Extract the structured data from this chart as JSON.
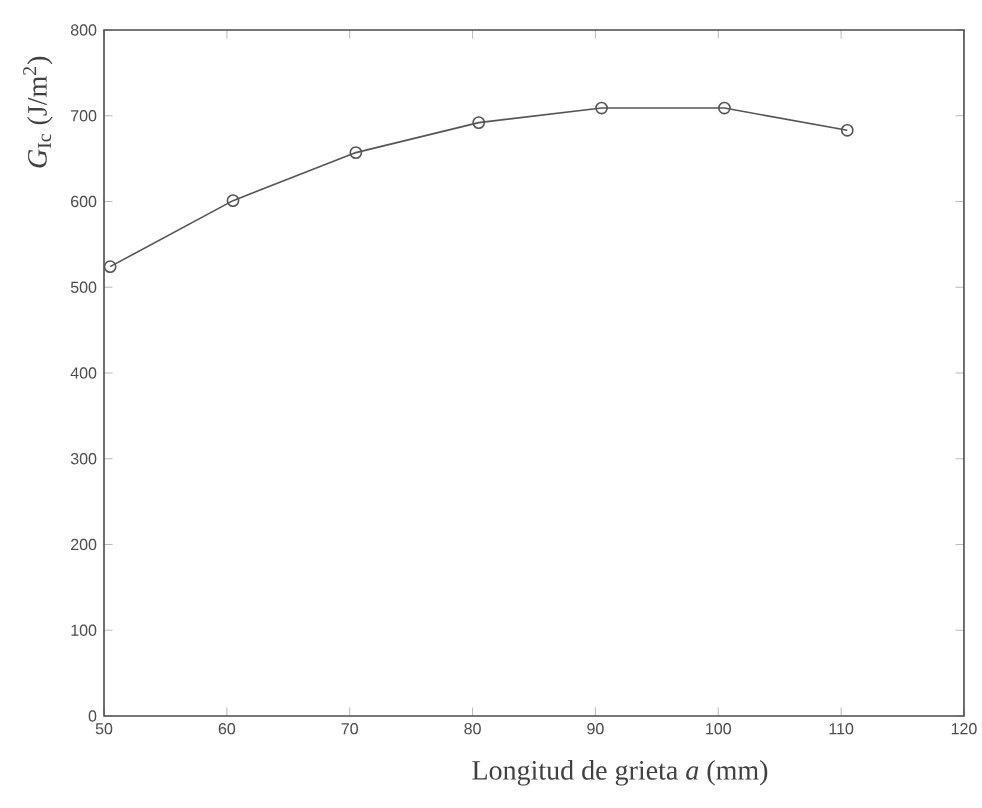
{
  "chart_data": {
    "type": "line",
    "xlabel": "Longitud de grieta *a* (mm)",
    "ylabel": "*G*$_{Ic}$ (J/m$^{2}$)",
    "x": [
      50.5,
      60.5,
      70.5,
      80.5,
      90.5,
      100.5,
      110.5
    ],
    "series": [
      {
        "color": "#555555",
        "values": [
          524,
          601,
          657,
          692,
          709,
          709,
          683
        ]
      }
    ],
    "xlim": [
      50,
      120
    ],
    "ylim": [
      0,
      800
    ],
    "xticks": [
      50,
      60,
      70,
      80,
      90,
      100,
      110,
      120
    ],
    "yticks": [
      0,
      100,
      200,
      300,
      400,
      500,
      600,
      700,
      800
    ],
    "marker": "circle",
    "line_style": "solid",
    "grid": false
  }
}
